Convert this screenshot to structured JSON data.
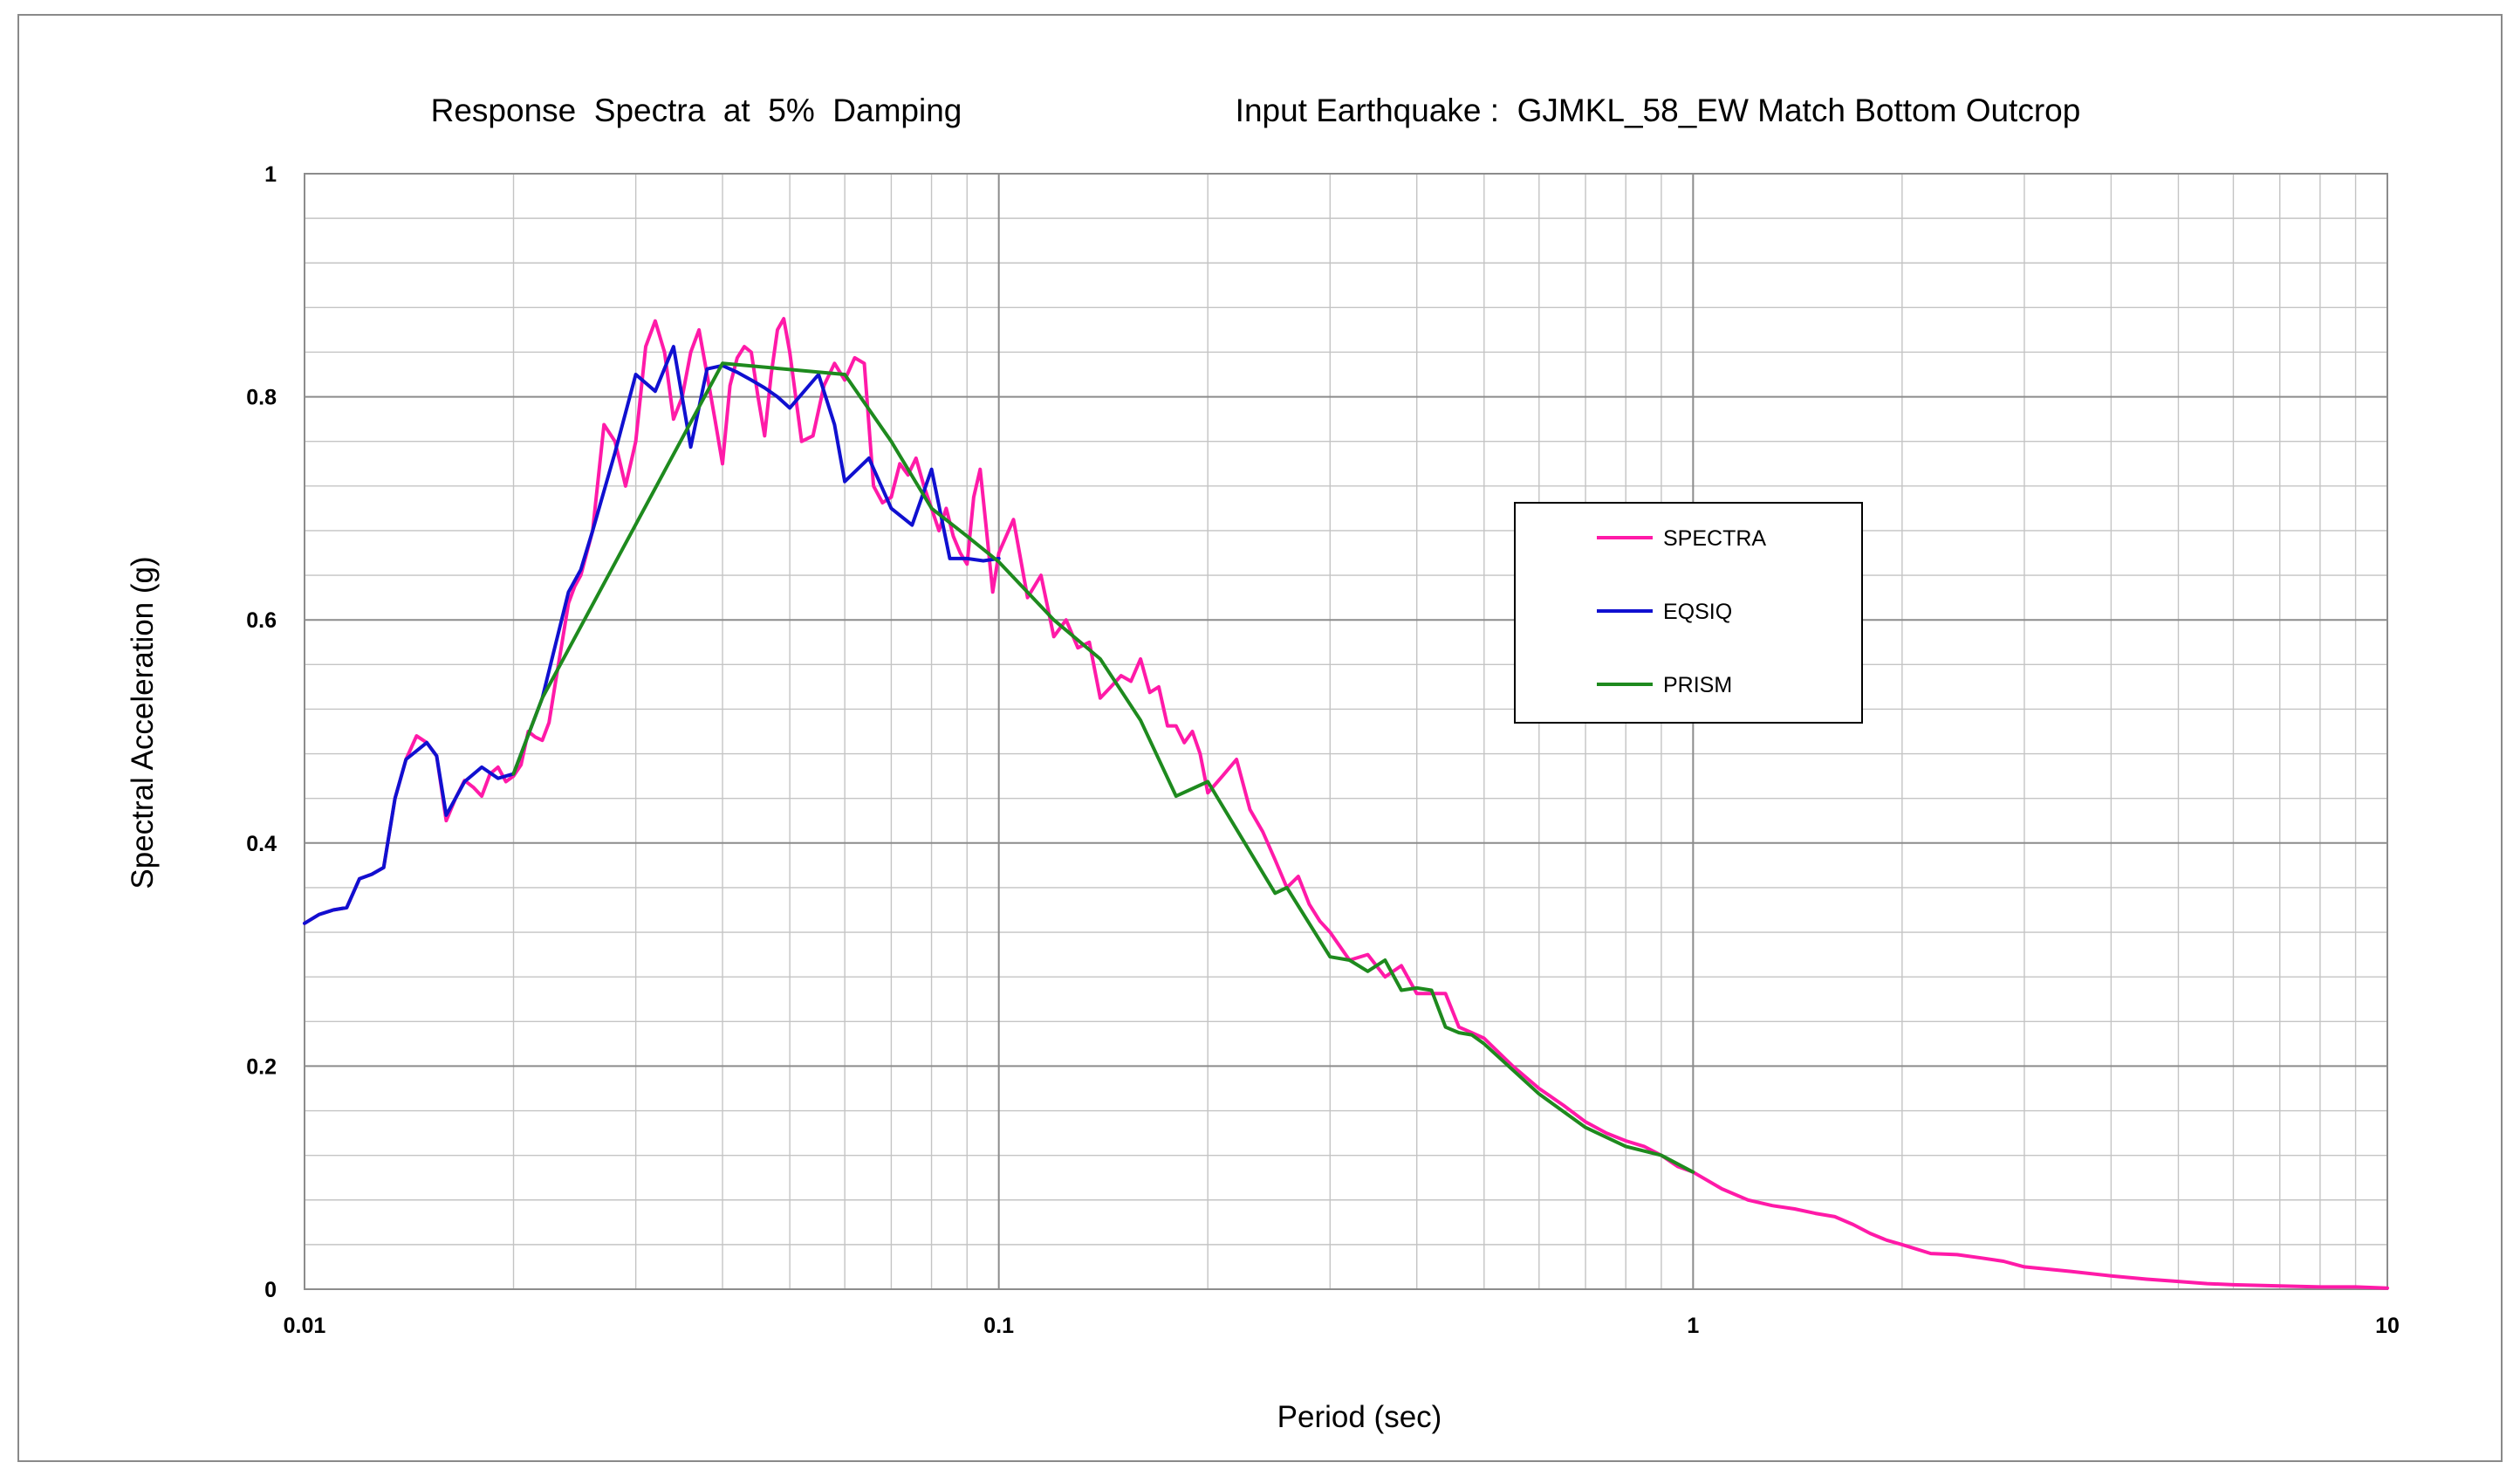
{
  "chart_data": {
    "type": "line",
    "title_left": "Response  Spectra  at  5%  Damping",
    "title_right": "Input Earthquake :  GJMKL_58_EW Match Bottom Outcrop",
    "xlabel": "Period (sec)",
    "ylabel": "Spectral Acceleration (g)",
    "x_scale": "log",
    "xlim": [
      0.01,
      10
    ],
    "ylim": [
      0,
      1
    ],
    "x_ticks": [
      0.01,
      0.1,
      1,
      10
    ],
    "x_tick_labels": [
      "0.01",
      "0.1",
      "1",
      "10"
    ],
    "y_ticks": [
      0,
      0.2,
      0.4,
      0.6,
      0.8,
      1
    ],
    "y_tick_labels": [
      "0",
      "0.2",
      "0.4",
      "0.6",
      "0.8",
      "1"
    ],
    "y_minor_step": 0.04,
    "grid": true,
    "legend_position": "right",
    "series": [
      {
        "name": "SPECTRA",
        "color": "#ff1aa8",
        "x": [
          0.01,
          0.0105,
          0.011,
          0.0115,
          0.012,
          0.0125,
          0.013,
          0.0135,
          0.014,
          0.0145,
          0.015,
          0.0155,
          0.016,
          0.0165,
          0.017,
          0.0175,
          0.018,
          0.0185,
          0.019,
          0.0195,
          0.02,
          0.0205,
          0.021,
          0.0215,
          0.022,
          0.0225,
          0.023,
          0.0235,
          0.024,
          0.0245,
          0.025,
          0.026,
          0.027,
          0.028,
          0.029,
          0.03,
          0.031,
          0.032,
          0.033,
          0.034,
          0.035,
          0.036,
          0.037,
          0.038,
          0.039,
          0.04,
          0.041,
          0.042,
          0.043,
          0.044,
          0.045,
          0.046,
          0.047,
          0.048,
          0.049,
          0.05,
          0.052,
          0.054,
          0.056,
          0.058,
          0.06,
          0.062,
          0.064,
          0.066,
          0.068,
          0.07,
          0.072,
          0.074,
          0.076,
          0.078,
          0.08,
          0.082,
          0.084,
          0.086,
          0.088,
          0.09,
          0.092,
          0.094,
          0.096,
          0.098,
          0.1,
          0.105,
          0.11,
          0.115,
          0.12,
          0.125,
          0.13,
          0.135,
          0.14,
          0.145,
          0.15,
          0.155,
          0.16,
          0.165,
          0.17,
          0.175,
          0.18,
          0.185,
          0.19,
          0.195,
          0.2,
          0.21,
          0.22,
          0.23,
          0.24,
          0.25,
          0.26,
          0.27,
          0.28,
          0.29,
          0.3,
          0.32,
          0.34,
          0.36,
          0.38,
          0.4,
          0.42,
          0.44,
          0.46,
          0.48,
          0.5,
          0.55,
          0.6,
          0.65,
          0.7,
          0.75,
          0.8,
          0.85,
          0.9,
          0.95,
          1,
          1.1,
          1.2,
          1.3,
          1.4,
          1.5,
          1.6,
          1.7,
          1.8,
          1.9,
          2,
          2.2,
          2.4,
          2.6,
          2.8,
          3,
          3.5,
          4,
          4.5,
          5,
          5.5,
          6,
          7,
          8,
          9,
          10
        ],
        "values": [
          0.328,
          0.336,
          0.34,
          0.342,
          0.368,
          0.372,
          0.378,
          0.44,
          0.475,
          0.496,
          0.49,
          0.478,
          0.42,
          0.44,
          0.456,
          0.45,
          0.442,
          0.462,
          0.468,
          0.455,
          0.46,
          0.47,
          0.5,
          0.495,
          0.492,
          0.508,
          0.545,
          0.58,
          0.615,
          0.63,
          0.64,
          0.68,
          0.775,
          0.76,
          0.72,
          0.76,
          0.845,
          0.868,
          0.84,
          0.78,
          0.8,
          0.84,
          0.86,
          0.82,
          0.78,
          0.74,
          0.81,
          0.835,
          0.845,
          0.84,
          0.8,
          0.765,
          0.82,
          0.86,
          0.87,
          0.84,
          0.76,
          0.765,
          0.81,
          0.83,
          0.815,
          0.835,
          0.83,
          0.72,
          0.705,
          0.71,
          0.74,
          0.73,
          0.745,
          0.72,
          0.7,
          0.68,
          0.7,
          0.675,
          0.66,
          0.65,
          0.71,
          0.735,
          0.68,
          0.625,
          0.66,
          0.69,
          0.62,
          0.64,
          0.585,
          0.6,
          0.575,
          0.58,
          0.53,
          0.54,
          0.55,
          0.545,
          0.565,
          0.535,
          0.54,
          0.505,
          0.505,
          0.49,
          0.5,
          0.48,
          0.445,
          0.46,
          0.475,
          0.43,
          0.41,
          0.385,
          0.36,
          0.37,
          0.345,
          0.33,
          0.32,
          0.295,
          0.3,
          0.28,
          0.29,
          0.265,
          0.265,
          0.265,
          0.235,
          0.23,
          0.225,
          0.2,
          0.18,
          0.165,
          0.15,
          0.14,
          0.133,
          0.128,
          0.12,
          0.11,
          0.105,
          0.09,
          0.08,
          0.075,
          0.072,
          0.068,
          0.065,
          0.058,
          0.05,
          0.044,
          0.04,
          0.032,
          0.031,
          0.028,
          0.025,
          0.02,
          0.016,
          0.012,
          0.009,
          0.007,
          0.005,
          0.004,
          0.003,
          0.002,
          0.002,
          0.001
        ]
      },
      {
        "name": "EQSIQ",
        "color": "#1010d0",
        "x": [
          0.01,
          0.0105,
          0.011,
          0.0115,
          0.012,
          0.0125,
          0.013,
          0.0135,
          0.014,
          0.015,
          0.0155,
          0.016,
          0.0165,
          0.017,
          0.018,
          0.019,
          0.02,
          0.022,
          0.024,
          0.025,
          0.026,
          0.028,
          0.03,
          0.032,
          0.034,
          0.036,
          0.038,
          0.04,
          0.042,
          0.044,
          0.046,
          0.048,
          0.05,
          0.055,
          0.058,
          0.06,
          0.065,
          0.07,
          0.075,
          0.08,
          0.085,
          0.09,
          0.095,
          0.1
        ],
        "values": [
          0.328,
          0.336,
          0.34,
          0.342,
          0.368,
          0.372,
          0.378,
          0.44,
          0.475,
          0.49,
          0.478,
          0.425,
          0.44,
          0.455,
          0.468,
          0.458,
          0.462,
          0.53,
          0.625,
          0.645,
          0.68,
          0.75,
          0.82,
          0.805,
          0.845,
          0.755,
          0.825,
          0.828,
          0.822,
          0.815,
          0.808,
          0.8,
          0.79,
          0.82,
          0.775,
          0.724,
          0.745,
          0.7,
          0.685,
          0.735,
          0.655,
          0.655,
          0.653,
          0.655
        ]
      },
      {
        "name": "PRISM",
        "color": "#1e8a1e",
        "x": [
          0.02,
          0.022,
          0.04,
          0.06,
          0.07,
          0.08,
          0.09,
          0.1,
          0.12,
          0.14,
          0.16,
          0.18,
          0.2,
          0.25,
          0.26,
          0.3,
          0.32,
          0.34,
          0.36,
          0.38,
          0.4,
          0.42,
          0.44,
          0.46,
          0.48,
          0.5,
          0.6,
          0.7,
          0.8,
          0.9,
          1
        ],
        "values": [
          0.462,
          0.53,
          0.83,
          0.82,
          0.76,
          0.7,
          0.675,
          0.652,
          0.6,
          0.565,
          0.51,
          0.442,
          0.455,
          0.355,
          0.36,
          0.298,
          0.295,
          0.285,
          0.295,
          0.268,
          0.27,
          0.268,
          0.235,
          0.23,
          0.228,
          0.22,
          0.175,
          0.145,
          0.128,
          0.12,
          0.105
        ]
      }
    ]
  }
}
